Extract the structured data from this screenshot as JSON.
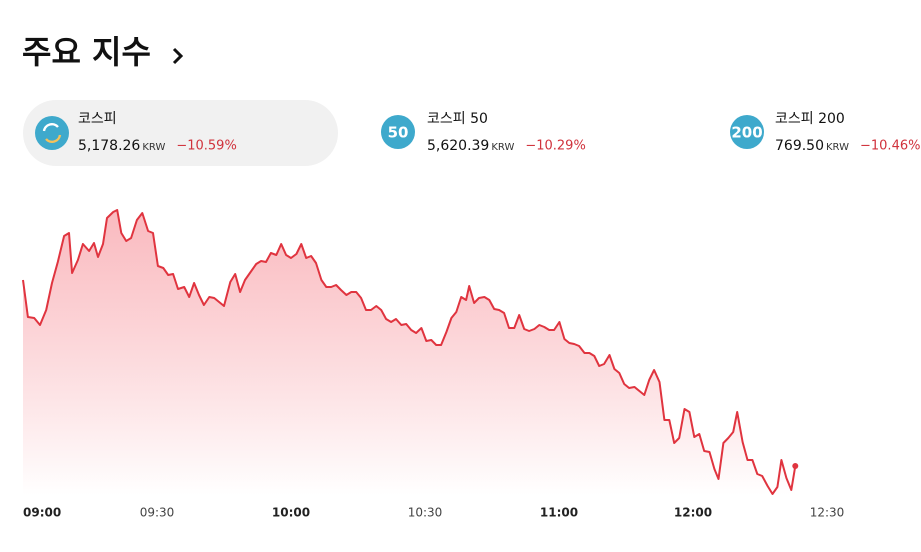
{
  "header": {
    "title": "주요 지수"
  },
  "indices": [
    {
      "name": "코스피",
      "value": "5,178.26",
      "unit": "KRW",
      "change": "−10.59%"
    },
    {
      "badge": "50",
      "name": "코스피 50",
      "value": "5,620.39",
      "unit": "KRW",
      "change": "−10.29%"
    },
    {
      "badge": "200",
      "name": "코스피 200",
      "value": "769.50",
      "unit": "KRW",
      "change": "−10.46%"
    }
  ],
  "chart_data": {
    "type": "line",
    "xlim": [
      0,
      180
    ],
    "ylim": [
      5120,
      5700
    ],
    "xticks": [
      {
        "value": 0,
        "label": "09:00"
      },
      {
        "value": 30,
        "label": "09:30"
      },
      {
        "value": 60,
        "label": "10:00"
      },
      {
        "value": 90,
        "label": "10:30"
      },
      {
        "value": 120,
        "label": "11:00"
      },
      {
        "value": 150,
        "label": "12:00"
      },
      {
        "value": 180,
        "label": "12:30"
      }
    ],
    "x": [
      0,
      1.1,
      2.5,
      3.8,
      5.2,
      6.5,
      7.8,
      9.2,
      10.3,
      11.0,
      12.3,
      13.4,
      14.8,
      15.9,
      16.8,
      17.9,
      18.8,
      20.2,
      21.1,
      22.0,
      23.1,
      24.2,
      25.5,
      26.7,
      28.0,
      29.1,
      30.2,
      31.4,
      32.5,
      33.6,
      34.7,
      36.1,
      37.2,
      38.3,
      39.4,
      40.5,
      41.7,
      42.8,
      43.9,
      45.0,
      46.4,
      47.5,
      48.6,
      49.7,
      50.8,
      52.2,
      53.3,
      54.4,
      55.5,
      56.7,
      57.8,
      58.9,
      60.0,
      61.2,
      62.3,
      63.4,
      64.5,
      65.6,
      66.8,
      67.9,
      69.0,
      70.1,
      71.2,
      72.4,
      73.5,
      74.6,
      75.7,
      76.8,
      77.9,
      79.1,
      80.2,
      81.3,
      82.4,
      83.5,
      84.7,
      85.8,
      86.9,
      88.0,
      89.2,
      90.3,
      91.4,
      92.5,
      93.6,
      94.8,
      95.9,
      97.0,
      98.1,
      99.2,
      99.9,
      101.0,
      102.1,
      103.3,
      104.4,
      105.5,
      106.6,
      107.7,
      108.8,
      110.0,
      111.1,
      112.2,
      113.3,
      114.5,
      115.6,
      116.7,
      117.8,
      118.9,
      120.1,
      121.2,
      122.3,
      123.4,
      124.5,
      125.7,
      126.8,
      127.9,
      129.0,
      130.1,
      131.3,
      132.4,
      133.5,
      134.6,
      135.7,
      136.9,
      138.0,
      139.1,
      140.2,
      141.3,
      142.5,
      143.6,
      144.7,
      145.8,
      146.9,
      148.1,
      149.2,
      150.3,
      151.4,
      152.5,
      153.7,
      154.8,
      155.7,
      156.8,
      157.9,
      159.0,
      159.9,
      161.1,
      162.2,
      163.3,
      164.4,
      165.5,
      166.7,
      167.8,
      168.9,
      169.8,
      170.9,
      172.0,
      172.9
    ],
    "series": [
      {
        "color": "#e0343f",
        "values": [
          5550,
          5476,
          5474,
          5460,
          5490,
          5544,
          5586,
          5638,
          5644,
          5564,
          5590,
          5622,
          5608,
          5624,
          5596,
          5622,
          5674,
          5686,
          5690,
          5644,
          5628,
          5634,
          5670,
          5684,
          5648,
          5644,
          5578,
          5574,
          5560,
          5562,
          5532,
          5536,
          5516,
          5544,
          5520,
          5500,
          5516,
          5514,
          5506,
          5498,
          5546,
          5562,
          5526,
          5550,
          5564,
          5582,
          5588,
          5586,
          5604,
          5600,
          5622,
          5600,
          5594,
          5602,
          5622,
          5594,
          5598,
          5584,
          5550,
          5536,
          5536,
          5540,
          5530,
          5520,
          5526,
          5526,
          5514,
          5490,
          5490,
          5498,
          5490,
          5472,
          5466,
          5472,
          5460,
          5462,
          5450,
          5444,
          5454,
          5428,
          5430,
          5420,
          5420,
          5446,
          5474,
          5486,
          5516,
          5510,
          5538,
          5504,
          5514,
          5516,
          5510,
          5492,
          5490,
          5484,
          5454,
          5454,
          5480,
          5452,
          5448,
          5452,
          5460,
          5456,
          5450,
          5450,
          5466,
          5432,
          5424,
          5422,
          5418,
          5404,
          5404,
          5398,
          5378,
          5382,
          5400,
          5372,
          5364,
          5342,
          5334,
          5336,
          5328,
          5320,
          5350,
          5370,
          5346,
          5270,
          5270,
          5224,
          5234,
          5292,
          5286,
          5236,
          5242,
          5208,
          5206,
          5172,
          5152,
          5224,
          5234,
          5246,
          5286,
          5226,
          5190,
          5190,
          5162,
          5158,
          5138,
          5122,
          5136,
          5190,
          5154,
          5130,
          5178
        ]
      }
    ]
  }
}
